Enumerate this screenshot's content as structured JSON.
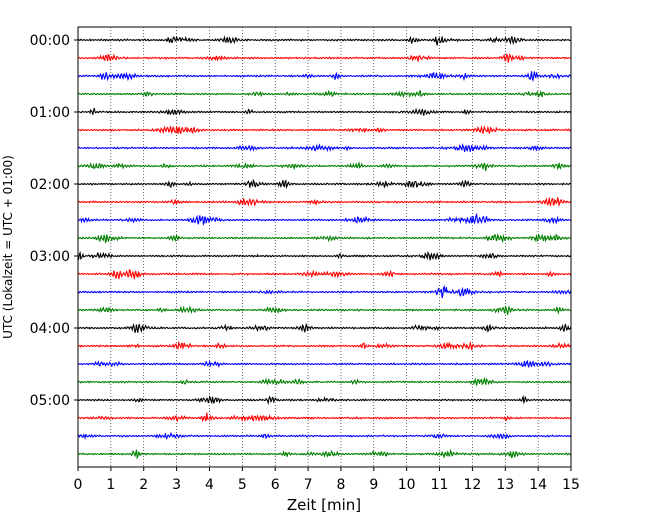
{
  "chart_data": {
    "type": "line",
    "title": "",
    "xlabel": "Zeit  [min]",
    "ylabel": "UTC (Lokalzeit = UTC + 01:00)",
    "xlim": [
      0,
      15
    ],
    "xticks": [
      "0",
      "1",
      "2",
      "3",
      "4",
      "5",
      "6",
      "7",
      "8",
      "9",
      "10",
      "11",
      "12",
      "13",
      "14",
      "15"
    ],
    "ytick_labels": [
      "00:00",
      "01:00",
      "02:00",
      "03:00",
      "04:00",
      "05:00"
    ],
    "grid": "vertical dotted",
    "trace_interval_minutes": 15,
    "trace_count": 24,
    "trace_colors": [
      "#000000",
      "#ff0000",
      "#0000ff",
      "#007f00"
    ],
    "series_note_colors": {
      "black": "#000000",
      "red": "#ff0000",
      "blue": "#0000ff",
      "green": "#007f00"
    }
  }
}
